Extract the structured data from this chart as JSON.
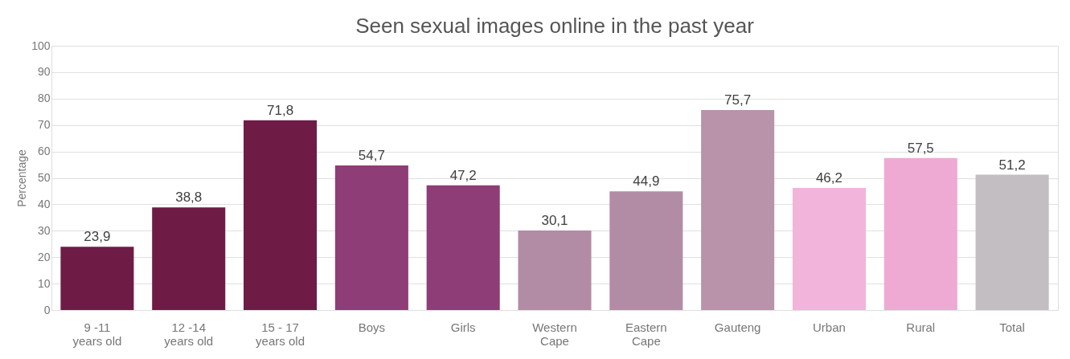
{
  "chart_data": {
    "type": "bar",
    "title": "Seen sexual images online in the past year",
    "ylabel": "Percentage",
    "categories": [
      "9 -11\nyears old",
      "12 -14\nyears old",
      "15 - 17\nyears old",
      "Boys",
      "Girls",
      "Western\nCape",
      "Eastern\nCape",
      "Gauteng",
      "Urban",
      "Rural",
      "Total"
    ],
    "values": [
      23.9,
      38.8,
      71.8,
      54.7,
      47.2,
      30.1,
      44.9,
      75.7,
      46.2,
      57.5,
      51.2
    ],
    "value_labels": [
      "23,9",
      "38,8",
      "71,8",
      "54,7",
      "47,2",
      "30,1",
      "44,9",
      "75,7",
      "46,2",
      "57,5",
      "51,2"
    ],
    "colors": [
      "#6e1c45",
      "#6e1c45",
      "#6e1c45",
      "#8e3d76",
      "#8e3d76",
      "#b28ca4",
      "#b28ca4",
      "#b893aa",
      "#f2b4da",
      "#eeaad2",
      "#c2bec2"
    ],
    "ylim": [
      0,
      100
    ],
    "yticks": [
      0,
      10,
      20,
      30,
      40,
      50,
      60,
      70,
      80,
      90,
      100
    ],
    "grid": "y"
  }
}
